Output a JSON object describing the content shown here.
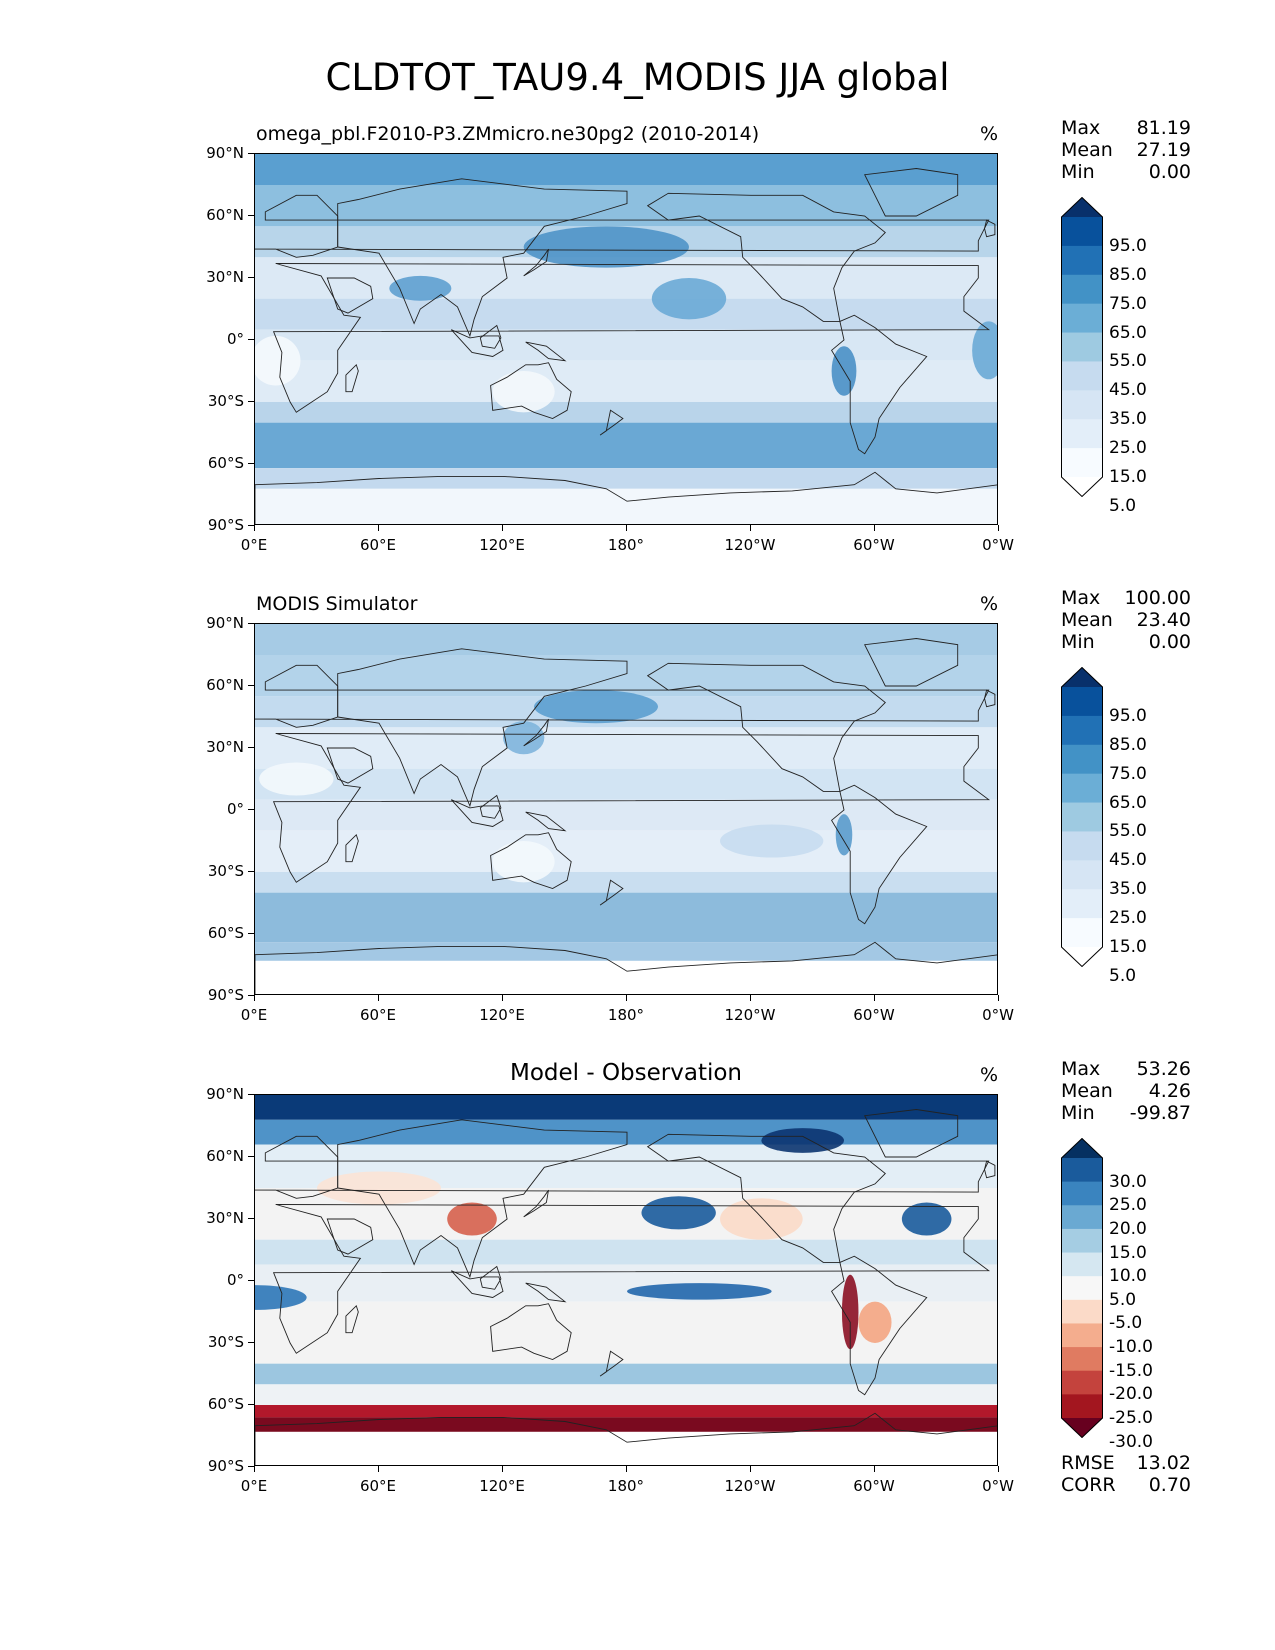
{
  "title": "CLDTOT_TAU9.4_MODIS JJA global",
  "lat_labels": [
    "90°N",
    "60°N",
    "30°N",
    "0°",
    "30°S",
    "60°S",
    "90°S"
  ],
  "lon_labels": [
    "0°E",
    "60°E",
    "120°E",
    "180°",
    "120°W",
    "60°W",
    "0°W"
  ],
  "panels": [
    {
      "title": "omega_pbl.F2010-P3.ZMmicro.ne30pg2 (2010-2014)",
      "title_style": "left",
      "units": "%",
      "stats": [
        {
          "label": "Max",
          "value": "81.19"
        },
        {
          "label": "Mean",
          "value": "27.19"
        },
        {
          "label": "Min",
          "value": "0.00"
        }
      ],
      "colorbar": {
        "labels": [
          "95.0",
          "85.0",
          "75.0",
          "65.0",
          "55.0",
          "45.0",
          "35.0",
          "25.0",
          "15.0",
          "5.0"
        ],
        "colors": [
          "#08306b",
          "#08519c",
          "#2171b5",
          "#4292c6",
          "#6baed6",
          "#9ecae1",
          "#c6dbef",
          "#d6e5f4",
          "#e3eef9",
          "#f7fbff",
          "#ffffff"
        ]
      }
    },
    {
      "title": "MODIS Simulator",
      "title_style": "left",
      "units": "%",
      "stats": [
        {
          "label": "Max",
          "value": "100.00"
        },
        {
          "label": "Mean",
          "value": "23.40"
        },
        {
          "label": "Min",
          "value": "0.00"
        }
      ],
      "colorbar": {
        "labels": [
          "95.0",
          "85.0",
          "75.0",
          "65.0",
          "55.0",
          "45.0",
          "35.0",
          "25.0",
          "15.0",
          "5.0"
        ],
        "colors": [
          "#08306b",
          "#08519c",
          "#2171b5",
          "#4292c6",
          "#6baed6",
          "#9ecae1",
          "#c6dbef",
          "#d6e5f4",
          "#e3eef9",
          "#f7fbff",
          "#ffffff"
        ]
      }
    },
    {
      "title": "Model - Observation",
      "title_style": "center",
      "units": "%",
      "stats": [
        {
          "label": "Max",
          "value": "53.26"
        },
        {
          "label": "Mean",
          "value": "4.26"
        },
        {
          "label": "Min",
          "value": "-99.87"
        }
      ],
      "colorbar": {
        "labels": [
          "30.0",
          "25.0",
          "20.0",
          "15.0",
          "10.0",
          "5.0",
          "-5.0",
          "-10.0",
          "-15.0",
          "-20.0",
          "-25.0",
          "-30.0"
        ],
        "colors": [
          "#053061",
          "#1a5b9c",
          "#3a84bf",
          "#6aa9d2",
          "#a5cde3",
          "#d5e7f1",
          "#f7f7f7",
          "#fbdac8",
          "#f4ad8e",
          "#e07b61",
          "#c4433d",
          "#a3161f",
          "#67001f"
        ]
      },
      "extra_stats": [
        {
          "label": "RMSE",
          "value": "13.02"
        },
        {
          "label": "CORR",
          "value": "0.70"
        }
      ]
    }
  ]
}
